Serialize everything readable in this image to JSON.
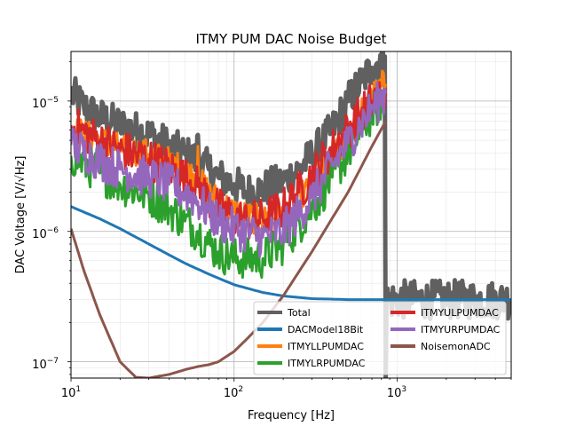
{
  "chart_data": {
    "type": "line",
    "title": "ITMY PUM DAC Noise Budget",
    "xlabel": "Frequency [Hz]",
    "ylabel": "DAC Voltage [V/√Hz]",
    "xscale": "log",
    "yscale": "log",
    "xlim": [
      10,
      5000
    ],
    "ylim": [
      7.5e-08,
      2.4e-05
    ],
    "grid": true,
    "legend": {
      "placement": "lower-right",
      "columns": 2
    },
    "x_ticks": [
      {
        "value": 10,
        "base": "10",
        "exp": "1"
      },
      {
        "value": 100,
        "base": "10",
        "exp": "2"
      },
      {
        "value": 1000,
        "base": "10",
        "exp": "3"
      }
    ],
    "y_ticks": [
      {
        "value": 1e-07,
        "base": "10",
        "exp": "−7"
      },
      {
        "value": 1e-06,
        "base": "10",
        "exp": "−6"
      },
      {
        "value": 1e-05,
        "base": "10",
        "exp": "−5"
      }
    ],
    "series": [
      {
        "name": "Total",
        "color": "#606060",
        "noise": 0.15,
        "x": [
          10,
          12,
          15,
          20,
          30,
          40,
          50,
          59,
          60,
          61,
          70,
          80,
          100,
          120,
          150,
          200,
          250,
          300,
          400,
          500,
          600,
          700,
          800,
          840,
          850,
          860,
          5000
        ],
        "y": [
          1.15e-05,
          9e-06,
          7.5e-06,
          6.5e-06,
          5.5e-06,
          4.5e-06,
          3.9e-06,
          3.5e-06,
          5.5e-06,
          3.4e-06,
          3e-06,
          2.6e-06,
          2.3e-06,
          2e-06,
          2.1e-06,
          2.4e-06,
          3e-06,
          3.8e-06,
          6e-06,
          1e-05,
          1.4e-05,
          1.8e-05,
          2.1e-05,
          2.2e-05,
          7.5e-08,
          3e-07,
          3e-07
        ]
      },
      {
        "name": "DACModel18Bit",
        "color": "#1f77b4",
        "noise": 0,
        "x": [
          10,
          15,
          20,
          30,
          40,
          50,
          70,
          100,
          150,
          200,
          300,
          500,
          1000,
          2000,
          5000
        ],
        "y": [
          1.55e-06,
          1.25e-06,
          1.05e-06,
          8e-07,
          6.6e-07,
          5.7e-07,
          4.7e-07,
          3.9e-07,
          3.4e-07,
          3.2e-07,
          3.05e-07,
          3e-07,
          3e-07,
          3e-07,
          3e-07
        ]
      },
      {
        "name": "ITMYLLPUMDAC",
        "color": "#ff7f0e",
        "noise": 0.12,
        "x": [
          10,
          15,
          20,
          30,
          40,
          50,
          59,
          60,
          61,
          70,
          80,
          100,
          150,
          200,
          300,
          400,
          500,
          600,
          700,
          800,
          850
        ],
        "y": [
          6e-06,
          5e-06,
          4.3e-06,
          3.9e-06,
          3.4e-06,
          2.9e-06,
          2.5e-06,
          4.5e-06,
          2.4e-06,
          2e-06,
          1.7e-06,
          1.4e-06,
          1.2e-06,
          1.4e-06,
          2.2e-06,
          3.5e-06,
          5.5e-06,
          8e-06,
          1.05e-05,
          1.3e-05,
          1.35e-05
        ]
      },
      {
        "name": "ITMYLRPUMDAC",
        "color": "#2ca02c",
        "noise": 0.16,
        "x": [
          10,
          15,
          20,
          30,
          40,
          50,
          60,
          70,
          80,
          100,
          150,
          200,
          300,
          400,
          500,
          600,
          700,
          800,
          850
        ],
        "y": [
          3.8e-06,
          2.8e-06,
          2.3e-06,
          1.9e-06,
          1.5e-06,
          1.2e-06,
          1e-06,
          8e-07,
          7e-07,
          6.2e-07,
          6.2e-07,
          8e-07,
          1.5e-06,
          2.6e-06,
          4e-06,
          6e-06,
          8e-06,
          1e-05,
          1.1e-05
        ]
      },
      {
        "name": "ITMYULPUMDAC",
        "color": "#d62728",
        "noise": 0.16,
        "x": [
          10,
          15,
          20,
          30,
          40,
          50,
          60,
          70,
          80,
          100,
          120,
          150,
          200,
          250,
          300,
          400,
          500,
          600,
          700,
          800,
          850
        ],
        "y": [
          6.5e-06,
          5e-06,
          4.2e-06,
          3.6e-06,
          3.1e-06,
          2.6e-06,
          2.2e-06,
          1.8e-06,
          1.5e-06,
          1.3e-06,
          1.2e-06,
          1.25e-06,
          1.5e-06,
          2e-06,
          2.7e-06,
          4.3e-06,
          6e-06,
          8e-06,
          1e-05,
          1.2e-05,
          1.25e-05
        ]
      },
      {
        "name": "ITMYURPUMDAC",
        "color": "#9467bd",
        "noise": 0.16,
        "x": [
          10,
          15,
          20,
          30,
          40,
          50,
          60,
          70,
          80,
          100,
          150,
          200,
          300,
          400,
          500,
          600,
          700,
          800,
          850
        ],
        "y": [
          4.6e-06,
          3.5e-06,
          3e-06,
          2.6e-06,
          2.3e-06,
          2e-06,
          1.7e-06,
          1.4e-06,
          1.2e-06,
          1.05e-06,
          9e-07,
          1e-06,
          1.8e-06,
          3.2e-06,
          4.8e-06,
          6.8e-06,
          8.8e-06,
          1.05e-05,
          1.15e-05
        ]
      },
      {
        "name": "NoisemonADC",
        "color": "#8c564b",
        "noise": 0,
        "x": [
          10,
          12,
          15,
          20,
          25,
          30,
          40,
          50,
          60,
          70,
          80,
          100,
          120,
          150,
          200,
          300,
          500,
          700,
          850
        ],
        "y": [
          1.05e-06,
          5e-07,
          2.3e-07,
          1e-07,
          7.6e-08,
          7.5e-08,
          8e-08,
          8.7e-08,
          9.2e-08,
          9.5e-08,
          1e-07,
          1.2e-07,
          1.5e-07,
          2e-07,
          3.2e-07,
          7e-07,
          2e-06,
          4.5e-06,
          7e-06
        ]
      }
    ]
  }
}
